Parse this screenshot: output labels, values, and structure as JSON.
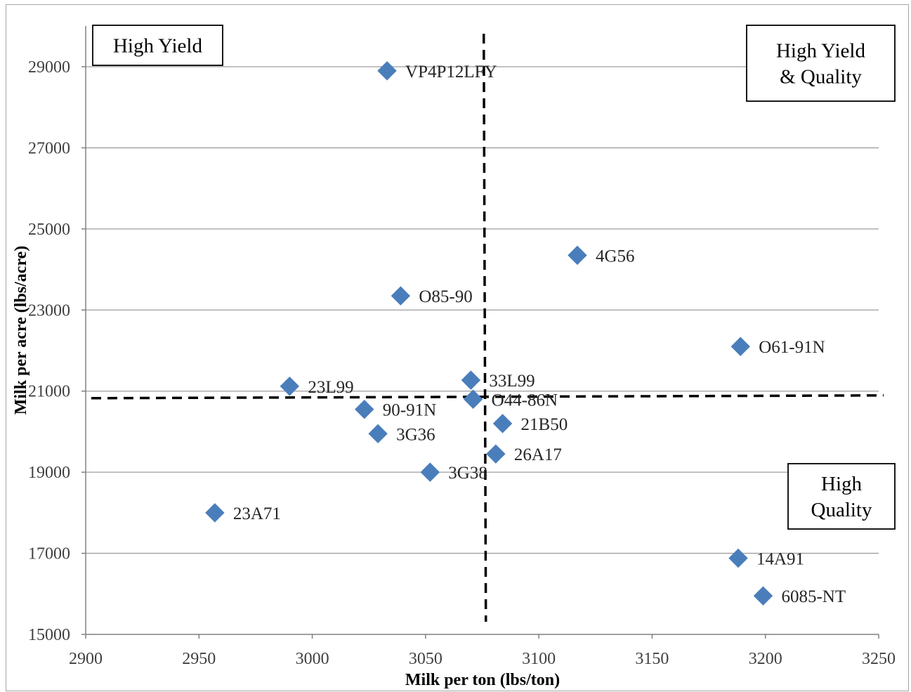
{
  "chart_data": {
    "type": "scatter",
    "title": "",
    "xlabel": "Milk per ton (lbs/ton)",
    "ylabel": "Milk per acre (lbs/acre)",
    "xlim": [
      2900,
      3250
    ],
    "ylim": [
      15000,
      30000
    ],
    "x_ticks": [
      2900,
      2950,
      3000,
      3050,
      3100,
      3150,
      3200,
      3250
    ],
    "y_ticks": [
      15000,
      17000,
      19000,
      21000,
      23000,
      25000,
      27000,
      29000
    ],
    "grid": "horizontal",
    "marker": "diamond",
    "series_color": "#4a7ebb",
    "points": [
      {
        "label": "VP4P12LFY",
        "x": 3033,
        "y": 28900
      },
      {
        "label": "4G56",
        "x": 3117,
        "y": 24350
      },
      {
        "label": "O85-90",
        "x": 3039,
        "y": 23350
      },
      {
        "label": "O61-91N",
        "x": 3189,
        "y": 22100
      },
      {
        "label": "33L99",
        "x": 3070,
        "y": 21270
      },
      {
        "label": "23L99",
        "x": 2990,
        "y": 21120
      },
      {
        "label": "O44-86N",
        "x": 3071,
        "y": 20800
      },
      {
        "label": "90-91N",
        "x": 3023,
        "y": 20550
      },
      {
        "label": "21B50",
        "x": 3084,
        "y": 20200
      },
      {
        "label": "3G36",
        "x": 3029,
        "y": 19950
      },
      {
        "label": "26A17",
        "x": 3081,
        "y": 19450
      },
      {
        "label": "3G38",
        "x": 3052,
        "y": 19000
      },
      {
        "label": "23A71",
        "x": 2957,
        "y": 18000
      },
      {
        "label": "14A91",
        "x": 3188,
        "y": 16880
      },
      {
        "label": "6085-NT",
        "x": 3199,
        "y": 15950
      }
    ],
    "reference_lines": {
      "vertical_x": 3076,
      "horizontal_y": 20860,
      "style": "dashed"
    },
    "quadrant_labels": {
      "top_left": [
        "High Yield"
      ],
      "top_right": [
        "High Yield",
        "& Quality"
      ],
      "bottom_right": [
        "High",
        "Quality"
      ]
    }
  }
}
